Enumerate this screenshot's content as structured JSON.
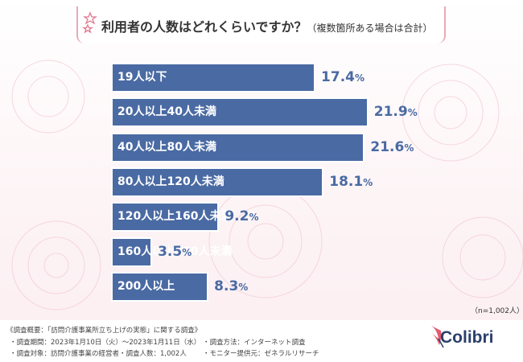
{
  "title": {
    "main": "利用者の人数はどれくらいですか？",
    "sub": "（複数箇所ある場合は合計）"
  },
  "colors": {
    "bar": "#4a6aa3",
    "accent": "#e9a9b6",
    "logo": "#2b3f6c"
  },
  "chart_data": {
    "type": "bar",
    "orientation": "horizontal",
    "unit": "%",
    "categories": [
      "19人以下",
      "20人以上40人未満",
      "40人以上80人未満",
      "80人以上120人未満",
      "120人以上160人未満",
      "160人以上200人未満",
      "200人以上"
    ],
    "values": [
      17.4,
      21.9,
      21.6,
      18.1,
      9.2,
      3.5,
      8.3
    ],
    "value_labels": [
      "17.4",
      "21.9",
      "21.6",
      "18.1",
      "9.2",
      "3.5",
      "8.3"
    ]
  },
  "sample_size": "（n=1,002人）",
  "survey": {
    "heading": "《調査概要：「訪問介護事業所立ち上げの実態」に関する調査》",
    "period": "・調査期間：2023年1月10日（火）〜2023年1月11日（水）",
    "method": "・調査方法：インターネット調査",
    "target": "・調査対象：訪問介護事業の経営者",
    "count": "・調査人数：1,002人",
    "provider": "・モニター提供元：ゼネラルリサーチ"
  },
  "logo": {
    "name": "Colibri",
    "icon": "colibri-bird-icon"
  }
}
